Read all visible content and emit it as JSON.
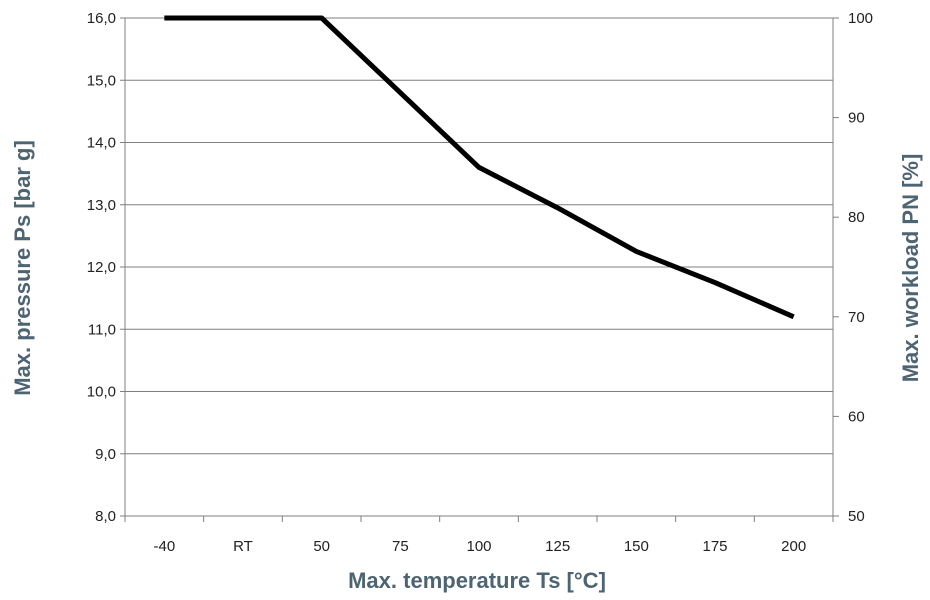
{
  "chart_data": {
    "type": "line",
    "title": "",
    "xlabel": "Max. temperature Ts [°C]",
    "ylabel": "Max. pressure Ps [bar g]",
    "y2label": "Max. workload PN [%]",
    "categories": [
      "-40",
      "RT",
      "50",
      "75",
      "100",
      "125",
      "150",
      "175",
      "200"
    ],
    "series": [
      {
        "values": [
          16.0,
          16.0,
          16.0,
          14.8,
          13.6,
          12.95,
          12.25,
          11.75,
          11.2
        ]
      }
    ],
    "y_ticks": [
      "8,0",
      "9,0",
      "10,0",
      "11,0",
      "12,0",
      "13,0",
      "14,0",
      "15,0",
      "16,0"
    ],
    "y2_ticks": [
      "50",
      "60",
      "70",
      "80",
      "90",
      "100"
    ],
    "ylim": [
      8,
      16
    ],
    "y2lim": [
      50,
      100
    ],
    "grid": true,
    "line_color": "#000000",
    "axis_title_color": "#4d6472"
  }
}
